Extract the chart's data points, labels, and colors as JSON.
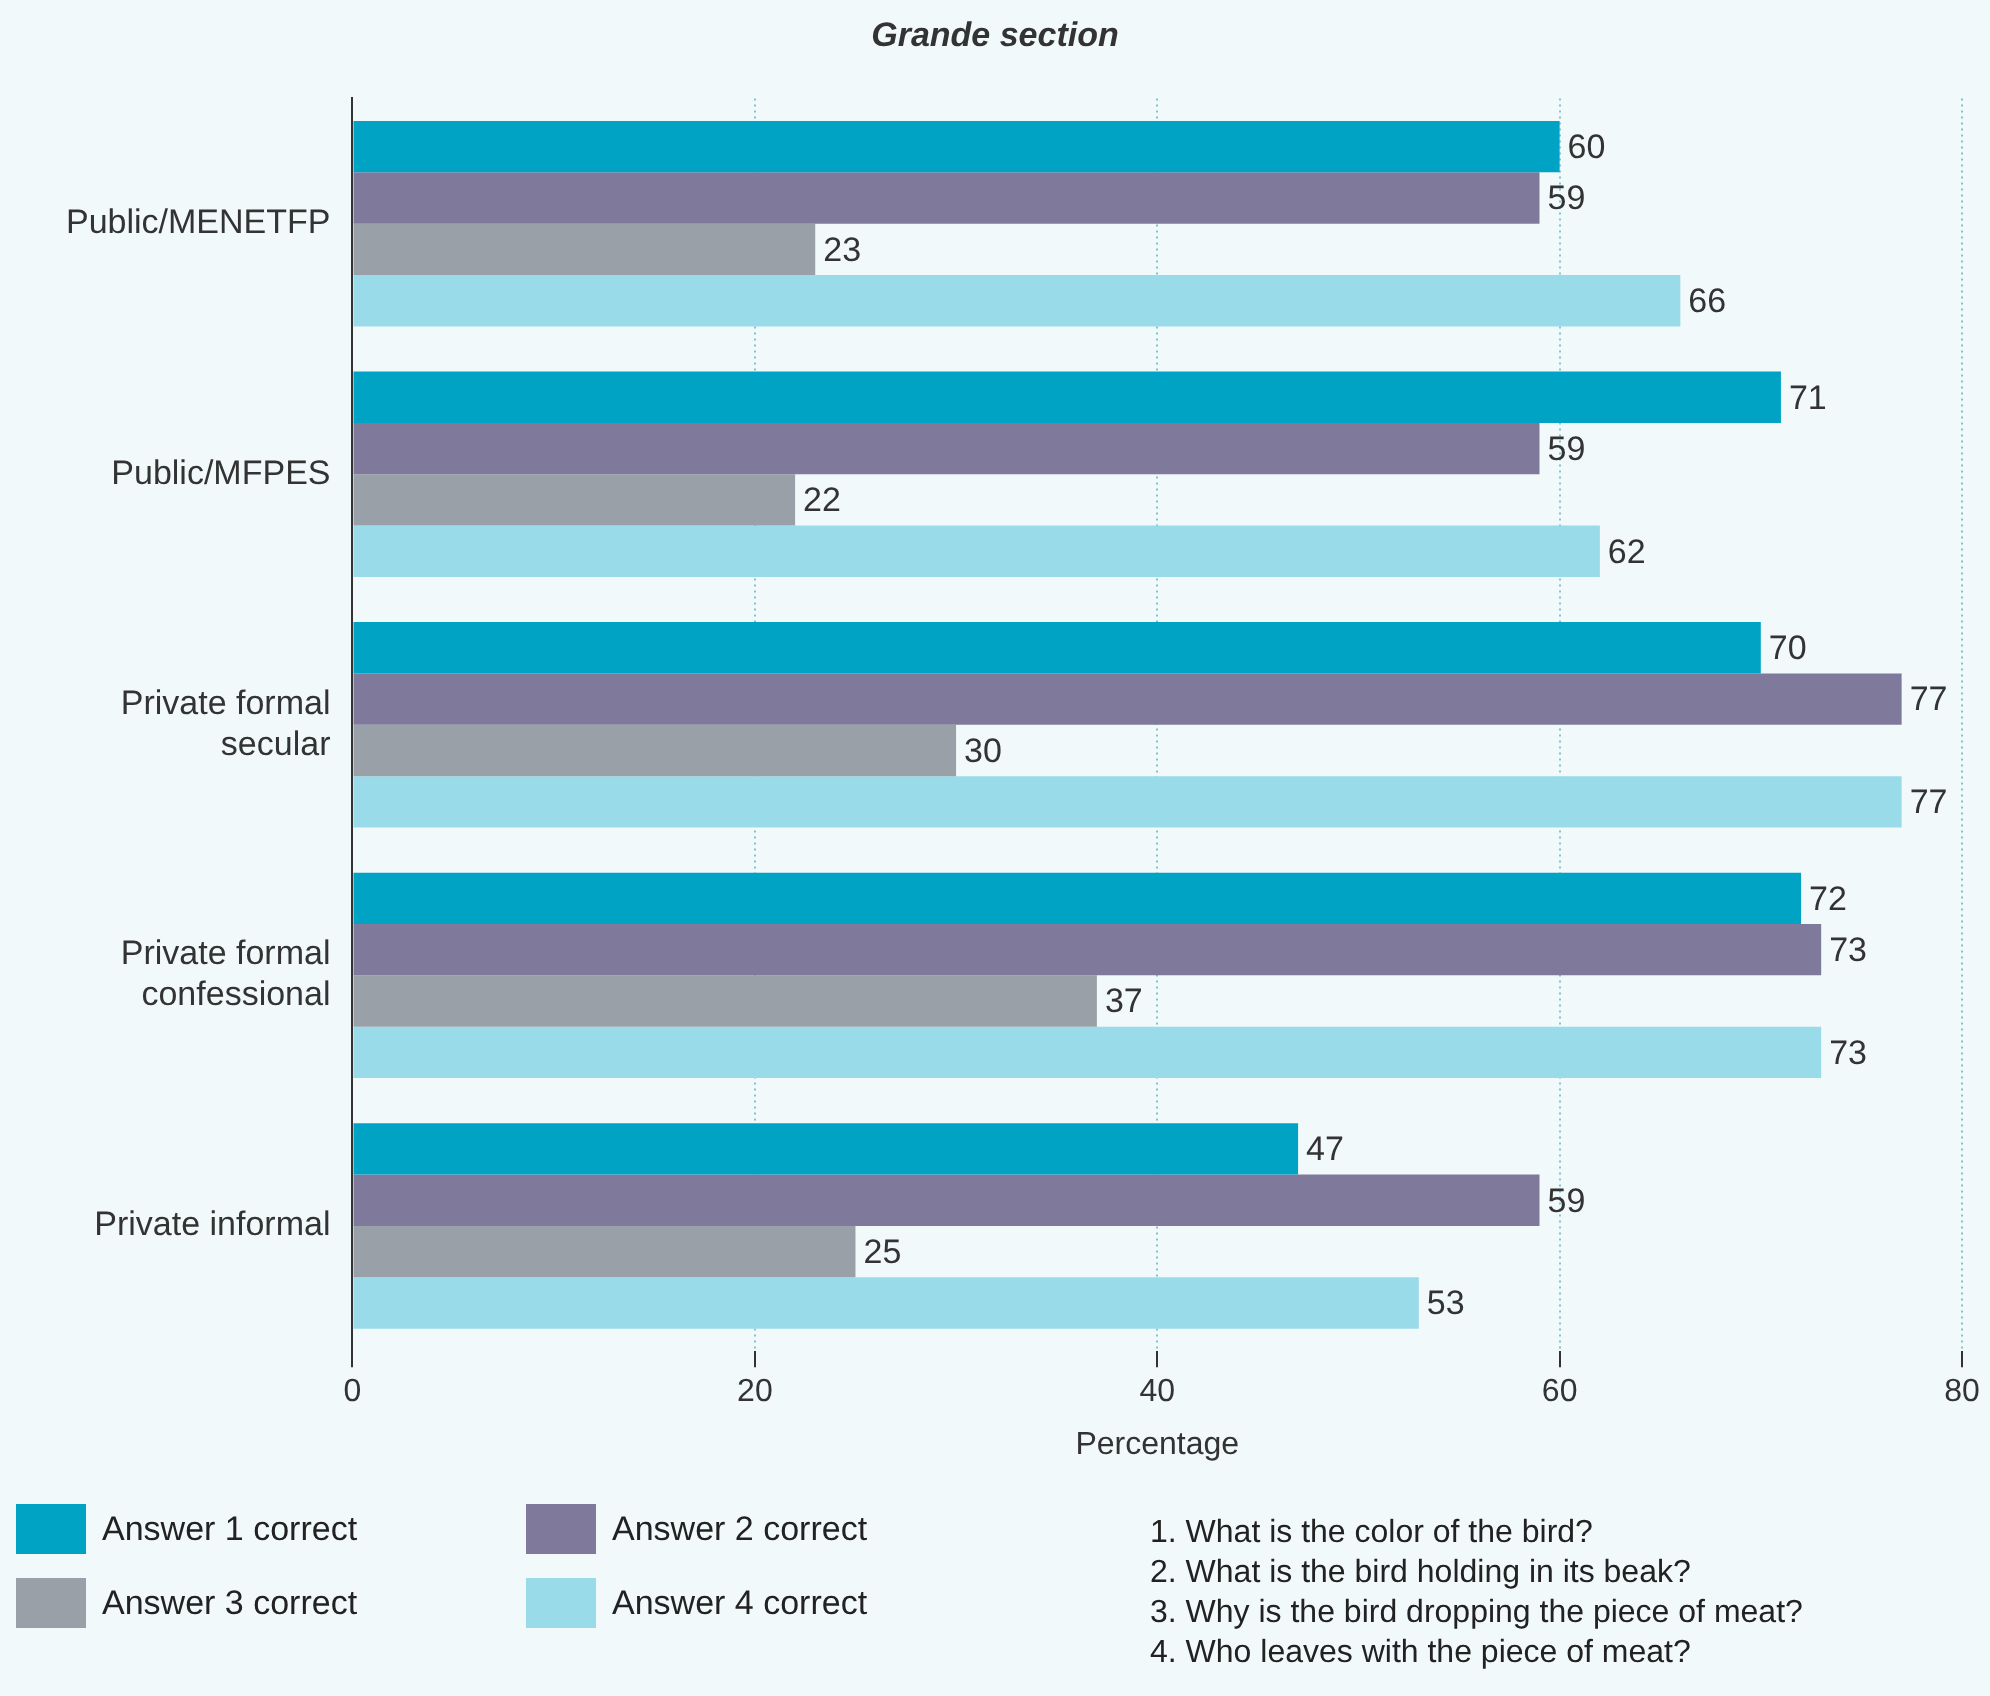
{
  "chart_data": {
    "type": "bar",
    "orientation": "horizontal",
    "title": "Grande section",
    "xlabel": "Percentage",
    "categories": [
      "Public/MENETFP",
      "Public/MFPES",
      "Private formal secular",
      "Private formal confessional",
      "Private informal"
    ],
    "series": [
      {
        "name": "Answer 1 correct",
        "color": "#00a3c4",
        "values": [
          60,
          71,
          70,
          72,
          47
        ]
      },
      {
        "name": "Answer 2 correct",
        "color": "#7f7a9c",
        "values": [
          59,
          59,
          77,
          73,
          59
        ]
      },
      {
        "name": "Answer 3 correct",
        "color": "#9aa0a8",
        "values": [
          23,
          22,
          30,
          37,
          25
        ]
      },
      {
        "name": "Answer 4 correct",
        "color": "#99dbe8",
        "values": [
          66,
          62,
          77,
          73,
          53
        ]
      }
    ],
    "xlim": [
      0,
      80
    ],
    "xticks": [
      0,
      20,
      40,
      60,
      80
    ],
    "grid": "x",
    "legend": "bottom",
    "data_labels": true,
    "annotations": [
      "1. What is the color of the bird?",
      "2. What is the bird holding in its beak?",
      "3. Why is the bird dropping the piece of meat?",
      "4. Who leaves with the piece of meat?"
    ]
  }
}
